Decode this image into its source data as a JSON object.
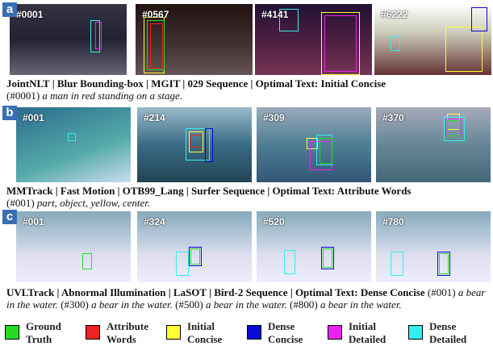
{
  "panels": [
    {
      "label": "a",
      "frames": [
        "#0001",
        "#0567",
        "#4141",
        "#6222"
      ],
      "caption": "JointNLT | Blur Bounding-box | MGIT | 029 Sequence | Optimal Text: Initial Concise",
      "descriptions": [
        {
          "ref": "(#0001)",
          "text": "a man in red standing on a stage."
        }
      ]
    },
    {
      "label": "b",
      "frames": [
        "#001",
        "#214",
        "#309",
        "#370"
      ],
      "caption": "MMTrack | Fast Motion | OTB99_Lang | Surfer Sequence | Optimal Text: Attribute Words",
      "descriptions": [
        {
          "ref": "(#001)",
          "text": "part, object, yellow, center."
        }
      ]
    },
    {
      "label": "c",
      "frames": [
        "#001",
        "#324",
        "#520",
        "#780"
      ],
      "caption": "UVLTrack | Abnormal Illumination | LaSOT | Bird-2 Sequence | Optimal Text: Dense Concise",
      "descriptions": [
        {
          "ref": "(#001)",
          "text": "a bear in the water."
        },
        {
          "ref": "(#300)",
          "text": "a bear in the water."
        },
        {
          "ref": "(#500)",
          "text": "a bear in the water."
        },
        {
          "ref": "(#800)",
          "text": "a bear in the water."
        }
      ]
    }
  ],
  "legend": [
    {
      "label": "Ground Truth",
      "color": "#22dd22"
    },
    {
      "label": "Attribute Words",
      "color": "#ee2222"
    },
    {
      "label": "Initial Concise",
      "color": "#ffff33"
    },
    {
      "label": "Dense Concise",
      "color": "#0a0ad8"
    },
    {
      "label": "Initial Detailed",
      "color": "#ee22ee"
    },
    {
      "label": "Dense Detailed",
      "color": "#33eeee"
    }
  ]
}
